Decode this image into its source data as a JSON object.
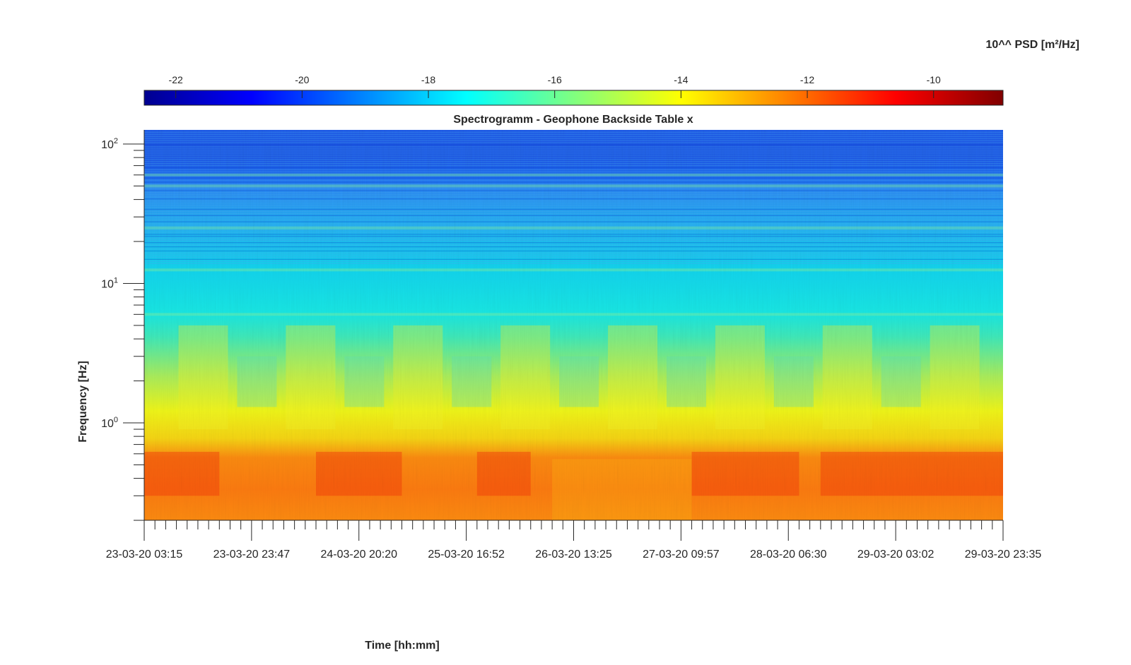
{
  "chart_data": {
    "type": "heatmap",
    "title": "Spectrogramm - Geophone Backside Table x",
    "xlabel": "Time [hh:mm]",
    "ylabel": "Frequency [Hz]",
    "colorbar_label": "10^^ PSD [m²/Hz]",
    "colorbar_ticks": [
      "-22",
      "-20",
      "-18",
      "-16",
      "-14",
      "-12",
      "-10"
    ],
    "colorbar_range": [
      -22.5,
      -8.9
    ],
    "colormap": "jet",
    "y_scale": "log",
    "ylim": [
      0.2,
      125
    ],
    "ytick_labels": [
      {
        "base": "10",
        "exp": "2"
      },
      {
        "base": "10",
        "exp": "1"
      },
      {
        "base": "10",
        "exp": "0"
      }
    ],
    "xtick_labels": [
      "23-03-20 03:15",
      "23-03-20 23:47",
      "24-03-20 20:20",
      "25-03-20 16:52",
      "26-03-20 13:25",
      "27-03-20 09:57",
      "28-03-20 06:30",
      "29-03-20 03:02",
      "29-03-20 23:35"
    ],
    "xlim": [
      "23-03-20 03:15",
      "29-03-20 23:35"
    ],
    "frequency_bands_hz": [
      0.2,
      0.5,
      0.9,
      2,
      6,
      12,
      25,
      50,
      100,
      125
    ],
    "log10_psd_by_band": [
      -11.9,
      -12.1,
      -13.8,
      -14.6,
      -15.9,
      -16.4,
      -16.9,
      -17.5,
      -18.8,
      -19.3
    ],
    "narrowband_lines_hz": [
      6,
      12.5,
      25,
      50,
      60
    ],
    "legend": "none",
    "grid": false
  }
}
